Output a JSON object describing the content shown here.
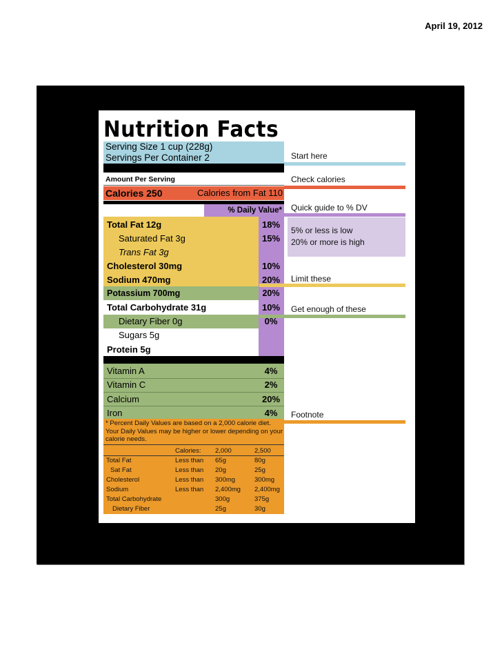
{
  "header": {
    "date": "April 19, 2012"
  },
  "label": {
    "title": "Nutrition Facts",
    "serving_size": "Serving Size 1 cup (228g)",
    "servings_per_container": "Servings Per Container  2",
    "amount_per_serving": "Amount Per Serving",
    "calories": "Calories 250",
    "calories_from_fat": "Calories from Fat 110",
    "daily_value_header": "% Daily Value*",
    "nutrients": [
      {
        "name": "Total Fat 12g",
        "pct": "18%"
      },
      {
        "name": "Saturated Fat 3g",
        "pct": "15%"
      },
      {
        "name": "Trans Fat 3g",
        "pct": ""
      },
      {
        "name": "Cholesterol 30mg",
        "pct": "10%"
      },
      {
        "name": "Sodium 470mg",
        "pct": "20%"
      },
      {
        "name": "Potassium 700mg",
        "pct": "20%"
      },
      {
        "name": "Total Carbohydrate 31g",
        "pct": "10%"
      },
      {
        "name": "Dietary Fiber 0g",
        "pct": "0%"
      },
      {
        "name": "Sugars 5g",
        "pct": ""
      },
      {
        "name": "Protein 5g",
        "pct": ""
      }
    ],
    "vitamins": [
      {
        "name": "Vitamin A",
        "pct": "4%"
      },
      {
        "name": "Vitamin C",
        "pct": "2%"
      },
      {
        "name": "Calcium",
        "pct": "20%"
      },
      {
        "name": "Iron",
        "pct": "4%"
      }
    ],
    "footnote_text": "* Percent Daily Values are based on a 2,000 calorie diet. Your Daily Values may be higher or lower depending on your calorie needs.",
    "footnote_table": {
      "header": [
        "",
        "Calories:",
        "2,000",
        "2,500"
      ],
      "rows": [
        [
          "Total Fat",
          "Less than",
          "65g",
          "80g"
        ],
        [
          "Sat Fat",
          "Less than",
          "20g",
          "25g"
        ],
        [
          "Cholesterol",
          "Less than",
          "300mg",
          "300mg"
        ],
        [
          "Sodium",
          "Less than",
          "2,400mg",
          "2,400mg"
        ],
        [
          "Total Carbohydrate",
          "",
          "300g",
          "375g"
        ],
        [
          "Dietary Fiber",
          "",
          "25g",
          "30g"
        ]
      ]
    }
  },
  "annotations": {
    "start_here": "Start here",
    "check_calories": "Check calories",
    "quick_guide": "Quick guide to % DV",
    "low": "5% or less is low",
    "high": "20% or more is high",
    "limit_these": "Limit these",
    "get_enough": "Get enough of these",
    "footnote": "Footnote"
  },
  "colors": {
    "blue": "#a8d4e2",
    "red": "#e8613f",
    "purple": "#b58ad0",
    "yellow": "#ecc95a",
    "green": "#9bb77a",
    "orange": "#ec9a2a",
    "frame": "#000000"
  }
}
